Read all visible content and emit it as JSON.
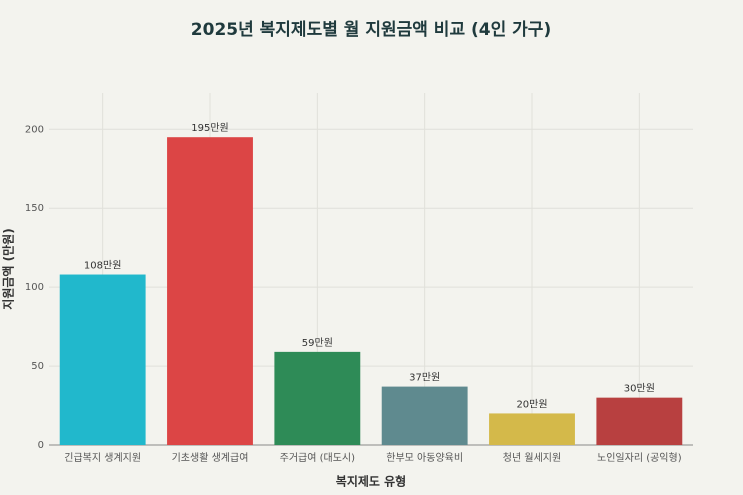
{
  "chart_data": {
    "type": "bar",
    "title": "2025년 복지제도별 월 지원금액 비교 (4인 가구)",
    "x_label": "복지제도 유형",
    "y_label": "지원금액 (만원)",
    "categories": [
      "긴급복지 생계지원",
      "기초생활 생계급여",
      "주거급여 (대도시)",
      "한부모 아동양육비",
      "청년 월세지원",
      "노인일자리 (공익형)"
    ],
    "values": [
      108,
      195,
      59,
      37,
      20,
      30
    ],
    "value_labels": [
      "108만원",
      "195만원",
      "59만원",
      "37만원",
      "20만원",
      "30만원"
    ],
    "colors": [
      "#21b8cc",
      "#dc4545",
      "#2e8b57",
      "#5f8a8f",
      "#d4b94a",
      "#b84040"
    ],
    "ylim": [
      0,
      223
    ],
    "yticks": [
      0,
      50,
      100,
      150,
      200
    ],
    "grid": true
  }
}
